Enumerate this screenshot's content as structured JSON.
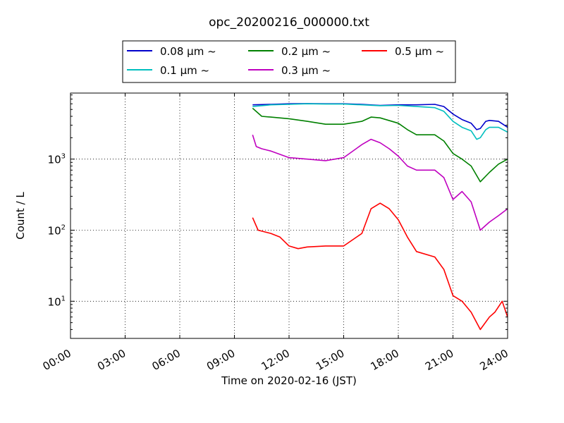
{
  "chart_data": {
    "type": "line",
    "title": "opc_20200216_000000.txt",
    "xlabel": "Time on 2020-02-16 (JST)",
    "ylabel": "Count / L",
    "x_unit": "hours",
    "xlim": [
      0,
      24
    ],
    "ylim": [
      3,
      8500
    ],
    "yscale": "log",
    "grid": true,
    "legend_position": "top-center",
    "x_ticks": [
      {
        "value": 0,
        "label": "00:00"
      },
      {
        "value": 3,
        "label": "03:00"
      },
      {
        "value": 6,
        "label": "06:00"
      },
      {
        "value": 9,
        "label": "09:00"
      },
      {
        "value": 12,
        "label": "12:00"
      },
      {
        "value": 15,
        "label": "15:00"
      },
      {
        "value": 18,
        "label": "18:00"
      },
      {
        "value": 21,
        "label": "21:00"
      },
      {
        "value": 24,
        "label": "24:00"
      }
    ],
    "y_ticks": [
      {
        "value": 10,
        "base": "10",
        "exp": "1"
      },
      {
        "value": 100,
        "base": "10",
        "exp": "2"
      },
      {
        "value": 1000,
        "base": "10",
        "exp": "3"
      }
    ],
    "series": [
      {
        "name": "0.08 μm ~",
        "color": "#0000cc",
        "x": [
          10,
          11,
          12,
          13,
          14,
          15,
          16,
          17,
          18,
          19,
          20,
          20.5,
          21,
          21.5,
          22,
          22.3,
          22.5,
          22.8,
          23,
          23.5,
          24
        ],
        "y": [
          5800,
          5900,
          6000,
          6050,
          6000,
          6000,
          5900,
          5700,
          5800,
          5800,
          5900,
          5500,
          4300,
          3600,
          3200,
          2600,
          2700,
          3400,
          3500,
          3400,
          2800
        ]
      },
      {
        "name": "0.1 μm ~",
        "color": "#00bfbf",
        "x": [
          10,
          11,
          12,
          13,
          14,
          15,
          16,
          17,
          18,
          19,
          20,
          20.5,
          21,
          21.5,
          22,
          22.3,
          22.5,
          22.8,
          23,
          23.5,
          24
        ],
        "y": [
          5500,
          5800,
          5900,
          6000,
          5950,
          5950,
          5800,
          5650,
          5700,
          5500,
          5300,
          4700,
          3400,
          2800,
          2500,
          1900,
          2000,
          2600,
          2800,
          2800,
          2400
        ]
      },
      {
        "name": "0.2 μm ~",
        "color": "#008000",
        "x": [
          10,
          10.5,
          11,
          12,
          13,
          14,
          15,
          16,
          16.5,
          17,
          18,
          18.5,
          19,
          20,
          20.5,
          21,
          21.5,
          22,
          22.5,
          23,
          23.5,
          24
        ],
        "y": [
          5200,
          4000,
          3900,
          3700,
          3400,
          3100,
          3100,
          3400,
          3900,
          3800,
          3200,
          2600,
          2200,
          2200,
          1800,
          1200,
          1000,
          800,
          480,
          650,
          850,
          1000
        ]
      },
      {
        "name": "0.3 μm ~",
        "color": "#bf00bf",
        "x": [
          10,
          10.2,
          10.5,
          11,
          12,
          13,
          14,
          15,
          16,
          16.5,
          17,
          17.5,
          18,
          18.5,
          19,
          20,
          20.5,
          21,
          21.5,
          22,
          22.5,
          23,
          23.5,
          24
        ],
        "y": [
          2200,
          1500,
          1400,
          1300,
          1050,
          1000,
          950,
          1050,
          1600,
          1900,
          1700,
          1400,
          1100,
          800,
          700,
          700,
          550,
          270,
          350,
          250,
          100,
          130,
          160,
          200
        ]
      },
      {
        "name": "0.5 μm ~",
        "color": "#ff0000",
        "x": [
          10,
          10.3,
          11,
          11.5,
          12,
          12.5,
          13,
          14,
          15,
          16,
          16.5,
          17,
          17.5,
          18,
          18.5,
          19,
          20,
          20.5,
          21,
          21.5,
          22,
          22.5,
          23,
          23.3,
          23.7,
          24
        ],
        "y": [
          150,
          100,
          90,
          80,
          60,
          55,
          58,
          60,
          60,
          90,
          200,
          240,
          200,
          140,
          80,
          50,
          42,
          28,
          12,
          10,
          7,
          4,
          6,
          7,
          10,
          6
        ]
      }
    ]
  }
}
